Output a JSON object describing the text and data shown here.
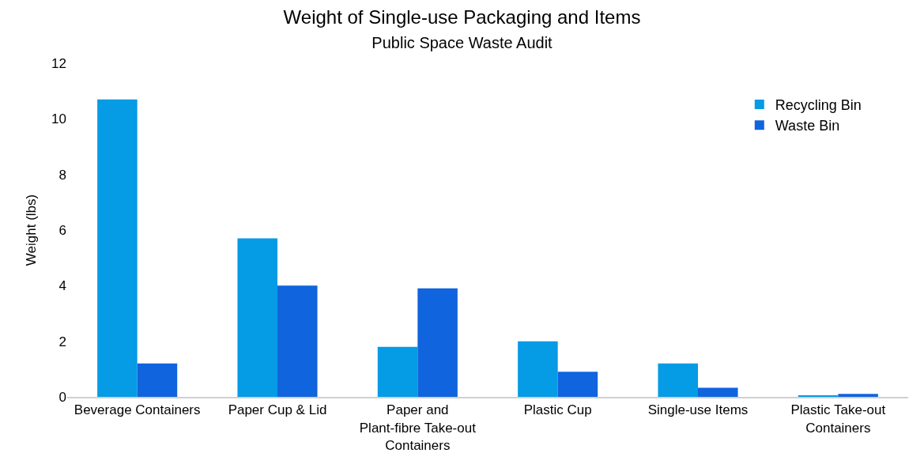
{
  "chart_data": {
    "type": "bar",
    "title": "Weight of Single-use Packaging and Items",
    "subtitle": "Public Space Waste Audit",
    "ylabel": "Weight (lbs)",
    "categories": [
      "Beverage Containers",
      "Paper Cup & Lid",
      "Paper and Plant-fibre Take-out Containers",
      "Plastic Cup",
      "Single-use Items",
      "Plastic Take-out Containers"
    ],
    "series": [
      {
        "name": "Recycling Bin",
        "color": "#059be5",
        "values": [
          10.7,
          5.7,
          1.8,
          2.0,
          1.2,
          0.03
        ]
      },
      {
        "name": "Waste Bin",
        "color": "#1064dd",
        "values": [
          1.2,
          4.0,
          3.9,
          0.9,
          0.33,
          0.11
        ]
      }
    ],
    "ylim": [
      0,
      12
    ],
    "yticks": [
      0,
      2,
      4,
      6,
      8,
      10,
      12
    ],
    "legend": "top right"
  }
}
